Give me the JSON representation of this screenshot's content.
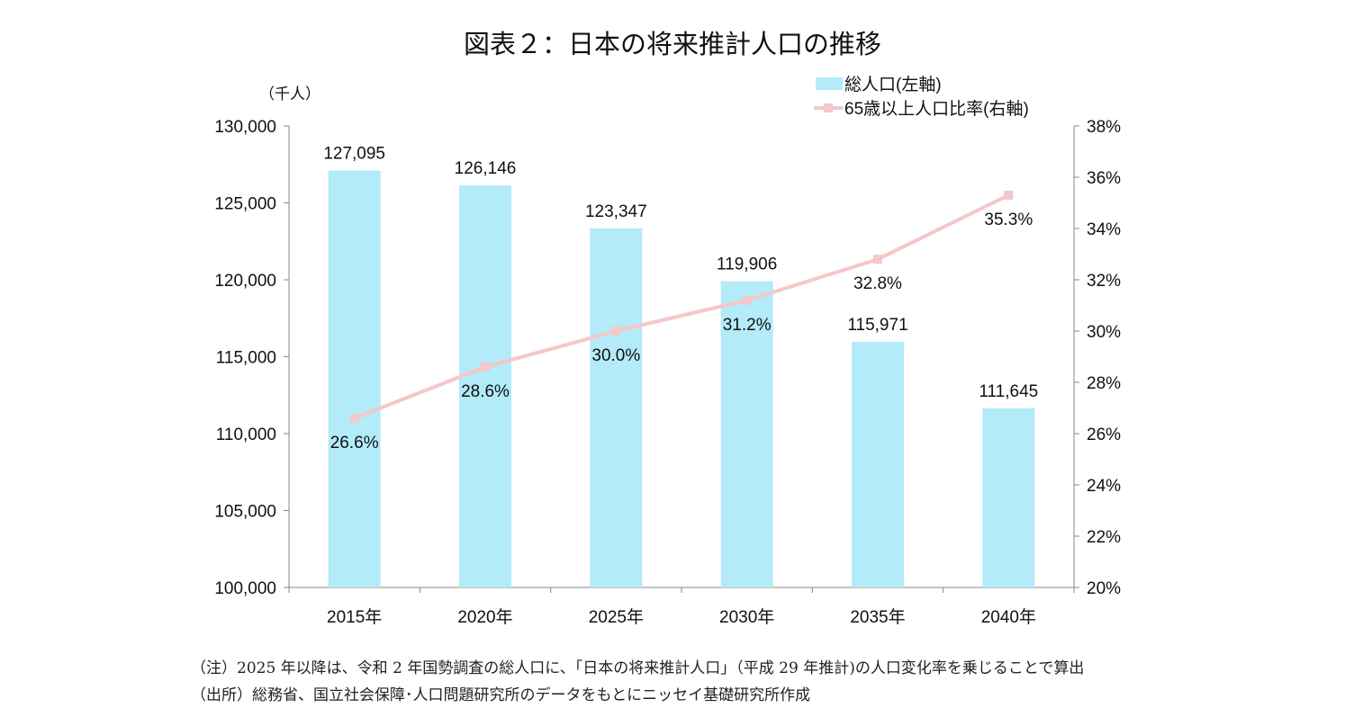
{
  "chart_data": {
    "type": "bar+line",
    "title": "図表２：日本の将来推計人口の推移",
    "left_unit": "（千人）",
    "categories": [
      "2015年",
      "2020年",
      "2025年",
      "2030年",
      "2035年",
      "2040年"
    ],
    "series": [
      {
        "name": "総人口(左軸)",
        "type": "bar",
        "axis": "left",
        "color": "#b3ebf8",
        "values": [
          127095,
          126146,
          123347,
          119906,
          115971,
          111645
        ],
        "labels": [
          "127,095",
          "126,146",
          "123,347",
          "119,906",
          "115,971",
          "111,645"
        ]
      },
      {
        "name": "65歳以上人口比率(右軸)",
        "type": "line",
        "axis": "right",
        "color": "#f4c7c8",
        "values": [
          26.6,
          28.6,
          30.0,
          31.2,
          32.8,
          35.3
        ],
        "labels": [
          "26.6%",
          "28.6%",
          "30.0%",
          "31.2%",
          "32.8%",
          "35.3%"
        ]
      }
    ],
    "left_axis": {
      "range": [
        100000,
        130000
      ],
      "ticks": [
        "100,000",
        "105,000",
        "110,000",
        "115,000",
        "120,000",
        "125,000",
        "130,000"
      ]
    },
    "right_axis": {
      "range": [
        20,
        38
      ],
      "ticks": [
        "20%",
        "22%",
        "24%",
        "26%",
        "28%",
        "30%",
        "32%",
        "34%",
        "36%",
        "38%"
      ]
    },
    "grid": false,
    "legend_position": "top-right"
  },
  "notes": [
    "（注）2025 年以降は、令和 2 年国勢調査の総人口に、「日本の将来推計人口」（平成 29 年推計)の人口変化率を乗じることで算出",
    "（出所）総務省、国立社会保障･人口問題研究所のデータをもとにニッセイ基礎研究所作成"
  ]
}
